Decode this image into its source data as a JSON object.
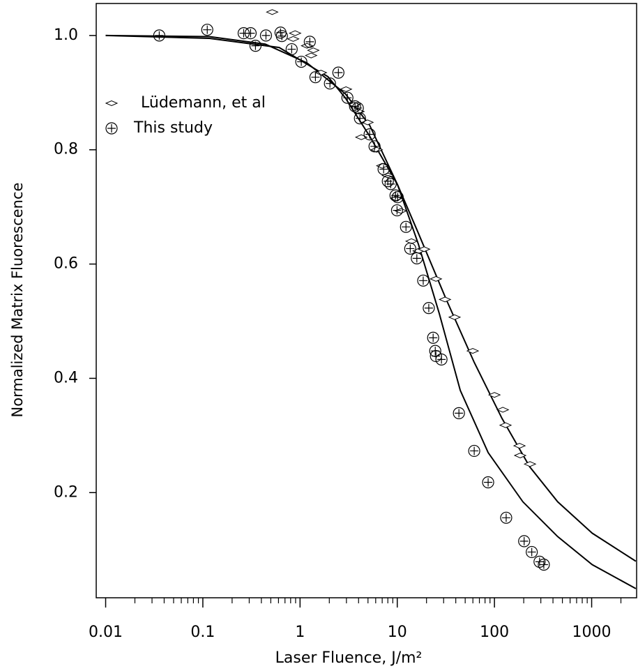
{
  "chart_data": {
    "type": "scatter",
    "x_label": "Laser Fluence, J/m²",
    "y_label": "Normalized Matrix Fluorescence",
    "x_log": true,
    "xlim": [
      0.008,
      2900
    ],
    "ylim": [
      0.016,
      1.056
    ],
    "xticks": [
      0.01,
      0.1,
      1,
      10,
      100,
      1000
    ],
    "xminorticks": [
      0.02,
      0.03,
      0.04,
      0.05,
      0.06,
      0.07,
      0.08,
      0.09,
      0.2,
      0.3,
      0.4,
      0.5,
      0.6,
      0.7,
      0.8,
      0.9,
      2,
      3,
      4,
      5,
      6,
      7,
      8,
      9,
      20,
      30,
      40,
      50,
      60,
      70,
      80,
      90,
      200,
      300,
      400,
      500,
      600,
      700,
      800,
      900,
      2000
    ],
    "yticks": [
      {
        "value": 0.2,
        "label": "0.2"
      },
      {
        "value": 0.4,
        "label": "0.4"
      },
      {
        "value": 0.6,
        "label": "0.6"
      },
      {
        "value": 0.8,
        "label": "0.8"
      },
      {
        "value": 1,
        "label": "1.0"
      }
    ],
    "legend": "upper left",
    "series": [
      {
        "name": "Lüdemann, et al",
        "marker": "diamond",
        "color": "#000000",
        "x": [
          0.517,
          0.85,
          0.89,
          1.18,
          1.3,
          1.37,
          1.64,
          2.97,
          3.62,
          4.0,
          4.27,
          4.95,
          6.15,
          7.0,
          8.0,
          9.75,
          10.9,
          14.0,
          16.6,
          18.9,
          25.0,
          31.0,
          38.9,
          59.8,
          100,
          122,
          130,
          181,
          184,
          232
        ],
        "values": [
          1.041,
          0.994,
          1.004,
          0.982,
          0.965,
          0.974,
          0.935,
          0.906,
          0.879,
          0.867,
          0.822,
          0.848,
          0.8,
          0.772,
          0.755,
          0.715,
          0.693,
          0.64,
          0.623,
          0.626,
          0.574,
          0.538,
          0.507,
          0.448,
          0.371,
          0.345,
          0.318,
          0.282,
          0.265,
          0.25
        ]
      },
      {
        "name": "This study",
        "marker": "circle-plus",
        "color": "#000000",
        "x": [
          0.0356,
          0.111,
          0.263,
          0.31,
          0.348,
          0.446,
          0.63,
          0.65,
          0.82,
          1.03,
          1.26,
          1.44,
          2.03,
          2.48,
          3.07,
          3.68,
          3.93,
          4.13,
          5.2,
          5.84,
          7.24,
          8.0,
          8.55,
          9.6,
          9.95,
          10.1,
          12.3,
          13.6,
          15.9,
          18.5,
          21.1,
          23.4,
          24.6,
          25.0,
          28.5,
          43.1,
          61.9,
          86.1,
          132,
          202,
          242,
          291,
          322
        ],
        "values": [
          1.0,
          1.01,
          1.004,
          1.004,
          0.982,
          1.0,
          1.005,
          0.999,
          0.976,
          0.954,
          0.989,
          0.927,
          0.916,
          0.935,
          0.891,
          0.876,
          0.873,
          0.855,
          0.827,
          0.806,
          0.766,
          0.745,
          0.74,
          0.72,
          0.694,
          0.717,
          0.665,
          0.627,
          0.61,
          0.571,
          0.523,
          0.471,
          0.448,
          0.439,
          0.433,
          0.339,
          0.273,
          0.218,
          0.156,
          0.115,
          0.096,
          0.079,
          0.074
        ]
      }
    ],
    "fits": [
      {
        "color": "#000000",
        "x": [
          0.01,
          0.117,
          0.61,
          1.935,
          2.92,
          5.2,
          10.06,
          16.5,
          31.9,
          61.9,
          119.5,
          231,
          447,
          1013,
          2850
        ],
        "values": [
          1.0,
          0.995,
          0.979,
          0.928,
          0.891,
          0.824,
          0.739,
          0.654,
          0.538,
          0.428,
          0.33,
          0.245,
          0.184,
          0.129,
          0.08
        ]
      },
      {
        "color": "#000000",
        "x": [
          0.01,
          0.117,
          0.438,
          1.18,
          2.92,
          5.2,
          10.06,
          16.5,
          27.1,
          44.5,
          86.1,
          196,
          447,
          1013,
          2850
        ],
        "values": [
          1.0,
          0.998,
          0.985,
          0.952,
          0.898,
          0.843,
          0.739,
          0.635,
          0.513,
          0.379,
          0.27,
          0.184,
          0.123,
          0.074,
          0.032
        ]
      }
    ]
  }
}
